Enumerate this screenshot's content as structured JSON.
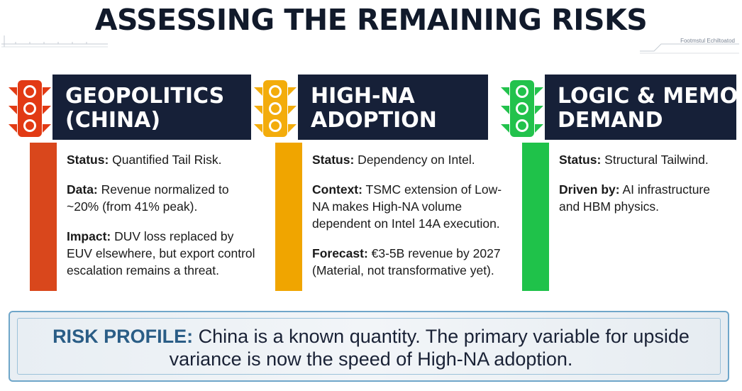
{
  "title": "ASSESSING THE REMAINING RISKS",
  "watermark": "Footmstul Echiltoatod",
  "colors": {
    "navy": "#162038",
    "red": "#d9471c",
    "amber": "#f0a500",
    "green": "#1fc24a",
    "risk_label": "#2a5d86"
  },
  "panels": [
    {
      "status_color": "red",
      "header_line1": "GEOPOLITICS",
      "header_line2": "(CHINA)",
      "items": [
        {
          "label": "Status:",
          "text": " Quantified Tail Risk."
        },
        {
          "label": "Data:",
          "text": " Revenue normalized to ~20% (from 41% peak)."
        },
        {
          "label": "Impact:",
          "text": " DUV loss replaced by EUV elsewhere, but export control escalation remains a threat."
        }
      ]
    },
    {
      "status_color": "amber",
      "header_line1": "HIGH-NA",
      "header_line2": "ADOPTION",
      "items": [
        {
          "label": "Status:",
          "text": " Dependency on Intel."
        },
        {
          "label": "Context:",
          "text": " TSMC extension of Low-NA makes High-NA volume dependent on Intel 14A execution."
        },
        {
          "label": "Forecast:",
          "text": " €3-5B revenue by 2027 (Material, not transformative yet)."
        }
      ]
    },
    {
      "status_color": "green",
      "header_line1": "LOGIC & MEMORY",
      "header_line2": "DEMAND",
      "items": [
        {
          "label": "Status:",
          "text": " Structural Tailwind."
        },
        {
          "label": "Driven by:",
          "text": " AI infrastructure and HBM physics."
        }
      ]
    }
  ],
  "risk_profile": {
    "label": "RISK PROFILE:",
    "text": " China is a known quantity. The primary variable for upside variance is now the speed of High-NA adoption."
  }
}
